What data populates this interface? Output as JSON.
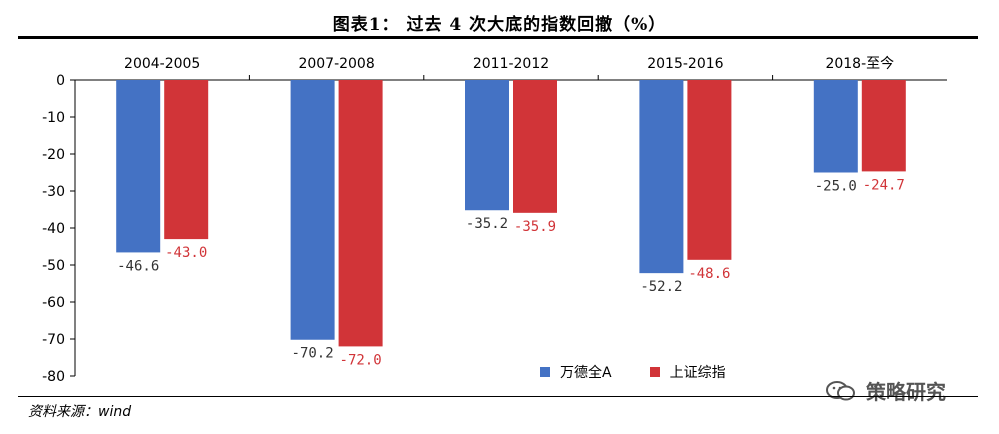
{
  "title": "图表1：  过去 4 次大底的指数回撤（%）",
  "source": "资料来源：wind",
  "watermark": "策略研究",
  "colors": {
    "wind_all_a": "#4472C4",
    "sse_composite": "#D13438"
  },
  "chart_data": {
    "type": "bar",
    "categories": [
      "2004-2005",
      "2007-2008",
      "2011-2012",
      "2015-2016",
      "2018-至今"
    ],
    "series": [
      {
        "name": "万德全A",
        "values": [
          -46.6,
          -70.2,
          -35.2,
          -52.2,
          -25.0
        ],
        "labels": [
          "-46.6",
          "-70.2",
          "-35.2",
          "-52.2",
          "-25.0"
        ]
      },
      {
        "name": "上证综指",
        "values": [
          -43.0,
          -72.0,
          -35.9,
          -48.6,
          -24.7
        ],
        "labels": [
          "-43.0",
          "-72.0",
          "-35.9",
          "-48.6",
          "-24.7"
        ]
      }
    ],
    "ylim": [
      -80,
      0
    ],
    "yticks": [
      0,
      -10,
      -20,
      -30,
      -40,
      -50,
      -60,
      -70,
      -80
    ],
    "ytick_labels": [
      "0",
      "-10",
      "-20",
      "-30",
      "-40",
      "-50",
      "-60",
      "-70",
      "-80"
    ],
    "category_labels_position": "top",
    "legend_position": "bottom-right",
    "grid": false
  }
}
